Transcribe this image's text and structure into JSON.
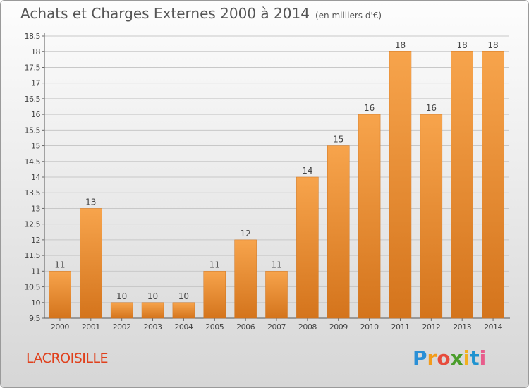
{
  "title": "Achats et Charges Externes 2000 à 2014",
  "unit": "(en milliers d'€)",
  "commune": "LACROISILLE",
  "logo": "Proxiti",
  "colors": {
    "bar_top": "#f7a44c",
    "bar_bottom": "#d4741c",
    "commune": "#e0401c"
  },
  "chart_data": {
    "type": "bar",
    "title": "Achats et Charges Externes 2000 à 2014",
    "subtitle": "(en milliers d'€)",
    "xlabel": "",
    "ylabel": "",
    "categories": [
      "2000",
      "2001",
      "2002",
      "2003",
      "2004",
      "2005",
      "2006",
      "2007",
      "2008",
      "2009",
      "2010",
      "2011",
      "2012",
      "2013",
      "2014"
    ],
    "values": [
      11,
      13,
      10,
      10,
      10,
      11,
      12,
      11,
      14,
      15,
      16,
      18,
      16,
      18,
      18
    ],
    "ylim": [
      9.5,
      18.5
    ],
    "yticks": [
      "9.5",
      "10",
      "10.5",
      "11",
      "11.5",
      "12",
      "12.5",
      "13",
      "13.5",
      "14",
      "14.5",
      "15",
      "15.5",
      "16",
      "16.5",
      "17",
      "17.5",
      "18",
      "18.5"
    ],
    "grid": true,
    "legend": "none"
  }
}
